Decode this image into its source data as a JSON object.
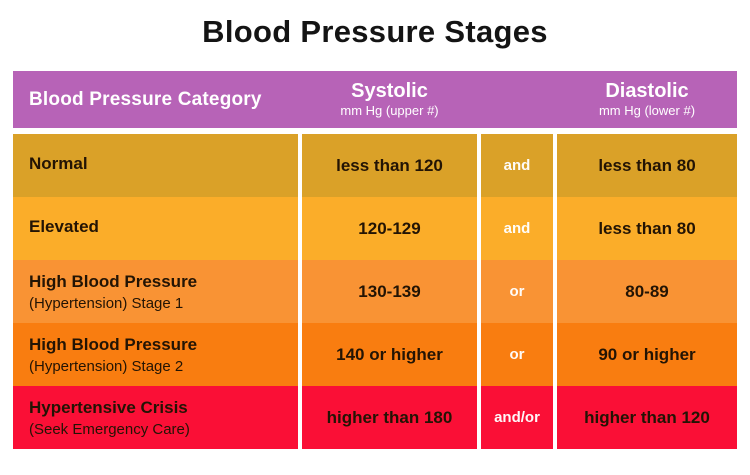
{
  "title": "Blood Pressure Stages",
  "colors": {
    "header_bg": "#b763b7",
    "row_normal": "#daa128",
    "row_elevated": "#fbad29",
    "row_stage1": "#f99334",
    "row_stage2": "#f97d10",
    "row_crisis": "#fa0f36",
    "divider": "#ffffff",
    "header_text": "#ffffff",
    "body_text": "#231404"
  },
  "table": {
    "header": {
      "category": "Blood Pressure Category",
      "systolic": {
        "label": "Systolic",
        "sub": "mm Hg (upper #)"
      },
      "diastolic": {
        "label": "Diastolic",
        "sub": "mm Hg (lower #)"
      }
    },
    "rows": [
      {
        "category": "Normal",
        "category_sub": "",
        "systolic": "less than 120",
        "connector": "and",
        "diastolic": "less than 80",
        "color": "#daa128"
      },
      {
        "category": "Elevated",
        "category_sub": "",
        "systolic": "120-129",
        "connector": "and",
        "diastolic": "less than 80",
        "color": "#fbad29"
      },
      {
        "category": "High Blood Pressure",
        "category_sub": "(Hypertension) Stage 1",
        "systolic": "130-139",
        "connector": "or",
        "diastolic": "80-89",
        "color": "#f99334"
      },
      {
        "category": "High Blood Pressure",
        "category_sub": "(Hypertension) Stage 2",
        "systolic": "140 or higher",
        "connector": "or",
        "diastolic": "90 or higher",
        "color": "#f97d10"
      },
      {
        "category": "Hypertensive Crisis",
        "category_sub": "(Seek Emergency Care)",
        "systolic": "higher than 180",
        "connector": "and/or",
        "diastolic": "higher than 120",
        "color": "#fa0f36"
      }
    ]
  },
  "chart_data": {
    "type": "table",
    "title": "Blood Pressure Stages",
    "columns": [
      "Blood Pressure Category",
      "Systolic mm Hg (upper #)",
      "",
      "Diastolic mm Hg (lower #)"
    ],
    "rows": [
      [
        "Normal",
        "less than 120",
        "and",
        "less than 80"
      ],
      [
        "Elevated",
        "120-129",
        "and",
        "less than 80"
      ],
      [
        "High Blood Pressure (Hypertension) Stage 1",
        "130-139",
        "or",
        "80-89"
      ],
      [
        "High Blood Pressure (Hypertension) Stage 2",
        "140 or higher",
        "or",
        "90 or higher"
      ],
      [
        "Hypertensive Crisis (Seek Emergency Care)",
        "higher than 180",
        "and/or",
        "higher than 120"
      ]
    ]
  }
}
